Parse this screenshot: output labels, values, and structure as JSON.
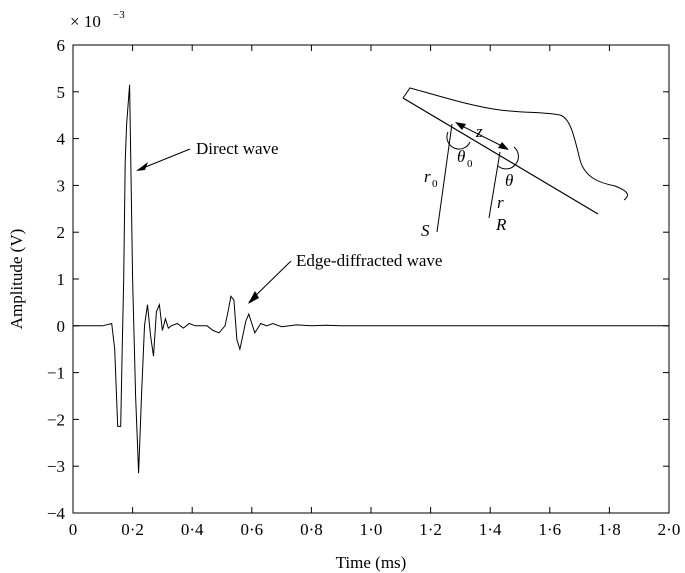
{
  "chart_data": {
    "type": "line",
    "title": "",
    "xlabel": "Time (ms)",
    "ylabel": "Amplitude (V)",
    "y_multiplier": "× 10",
    "y_multiplier_exp": "−3",
    "xlim": [
      0,
      2.0
    ],
    "ylim": [
      -4,
      6
    ],
    "grid": false,
    "x_ticks": [
      0,
      0.2,
      0.4,
      0.6,
      0.8,
      1.0,
      1.2,
      1.4,
      1.6,
      1.8,
      2.0
    ],
    "x_tick_labels": [
      "0",
      "0·2",
      "0·4",
      "0·6",
      "0·8",
      "1·0",
      "1·2",
      "1·4",
      "1·6",
      "1·8",
      "2·0"
    ],
    "y_ticks": [
      -4,
      -3,
      -2,
      -1,
      0,
      1,
      2,
      3,
      4,
      5,
      6
    ],
    "y_tick_labels": [
      "−4",
      "−3",
      "−2",
      "−1",
      "0",
      "1",
      "2",
      "3",
      "4",
      "5",
      "6"
    ],
    "series": [
      {
        "x": [
          0,
          0.05,
          0.1,
          0.13,
          0.14,
          0.15,
          0.16,
          0.165,
          0.17,
          0.175,
          0.18,
          0.19,
          0.2,
          0.21,
          0.22,
          0.23,
          0.24,
          0.25,
          0.26,
          0.27,
          0.28,
          0.29,
          0.3,
          0.31,
          0.32,
          0.33,
          0.35,
          0.37,
          0.39,
          0.41,
          0.43,
          0.45,
          0.47,
          0.49,
          0.51,
          0.52,
          0.53,
          0.54,
          0.55,
          0.56,
          0.57,
          0.58,
          0.59,
          0.6,
          0.61,
          0.62,
          0.63,
          0.65,
          0.67,
          0.7,
          0.75,
          0.8,
          0.85,
          0.9,
          1.0,
          1.1,
          1.2,
          1.3,
          1.4,
          1.5,
          1.6,
          1.7,
          1.8,
          1.9,
          2.0
        ],
        "y": [
          0,
          0,
          0,
          0.05,
          -0.5,
          -2.15,
          -2.15,
          -0.5,
          1.0,
          3.5,
          4.3,
          5.15,
          1.0,
          -1.5,
          -3.15,
          -1.5,
          0.0,
          0.45,
          -0.2,
          -0.65,
          0.3,
          0.45,
          -0.1,
          0.15,
          -0.05,
          0.0,
          0.05,
          -0.05,
          0.05,
          0.0,
          0.0,
          0.0,
          -0.1,
          -0.15,
          0.0,
          0.3,
          0.63,
          0.55,
          -0.3,
          -0.5,
          -0.2,
          0.1,
          0.25,
          0.05,
          -0.15,
          -0.05,
          0.05,
          0.0,
          0.05,
          -0.02,
          0.02,
          0.0,
          0.01,
          0.0,
          0.0,
          0.0,
          0.0,
          0.0,
          0.0,
          0.0,
          0.0,
          0.0,
          0.0,
          0.0,
          0.0
        ]
      }
    ],
    "annotations": [
      {
        "text": "Direct wave",
        "points_to": [
          0.2,
          3.2
        ]
      },
      {
        "text": "Edge-diffracted wave",
        "points_to": [
          0.57,
          0.5
        ]
      }
    ]
  },
  "inset": {
    "label_S": "S",
    "label_R": "R",
    "label_r0": "r",
    "label_r0_sub": "0",
    "label_r": "r",
    "label_theta0": "θ",
    "label_theta0_sub": "0",
    "label_theta": "θ",
    "label_z": "z"
  }
}
